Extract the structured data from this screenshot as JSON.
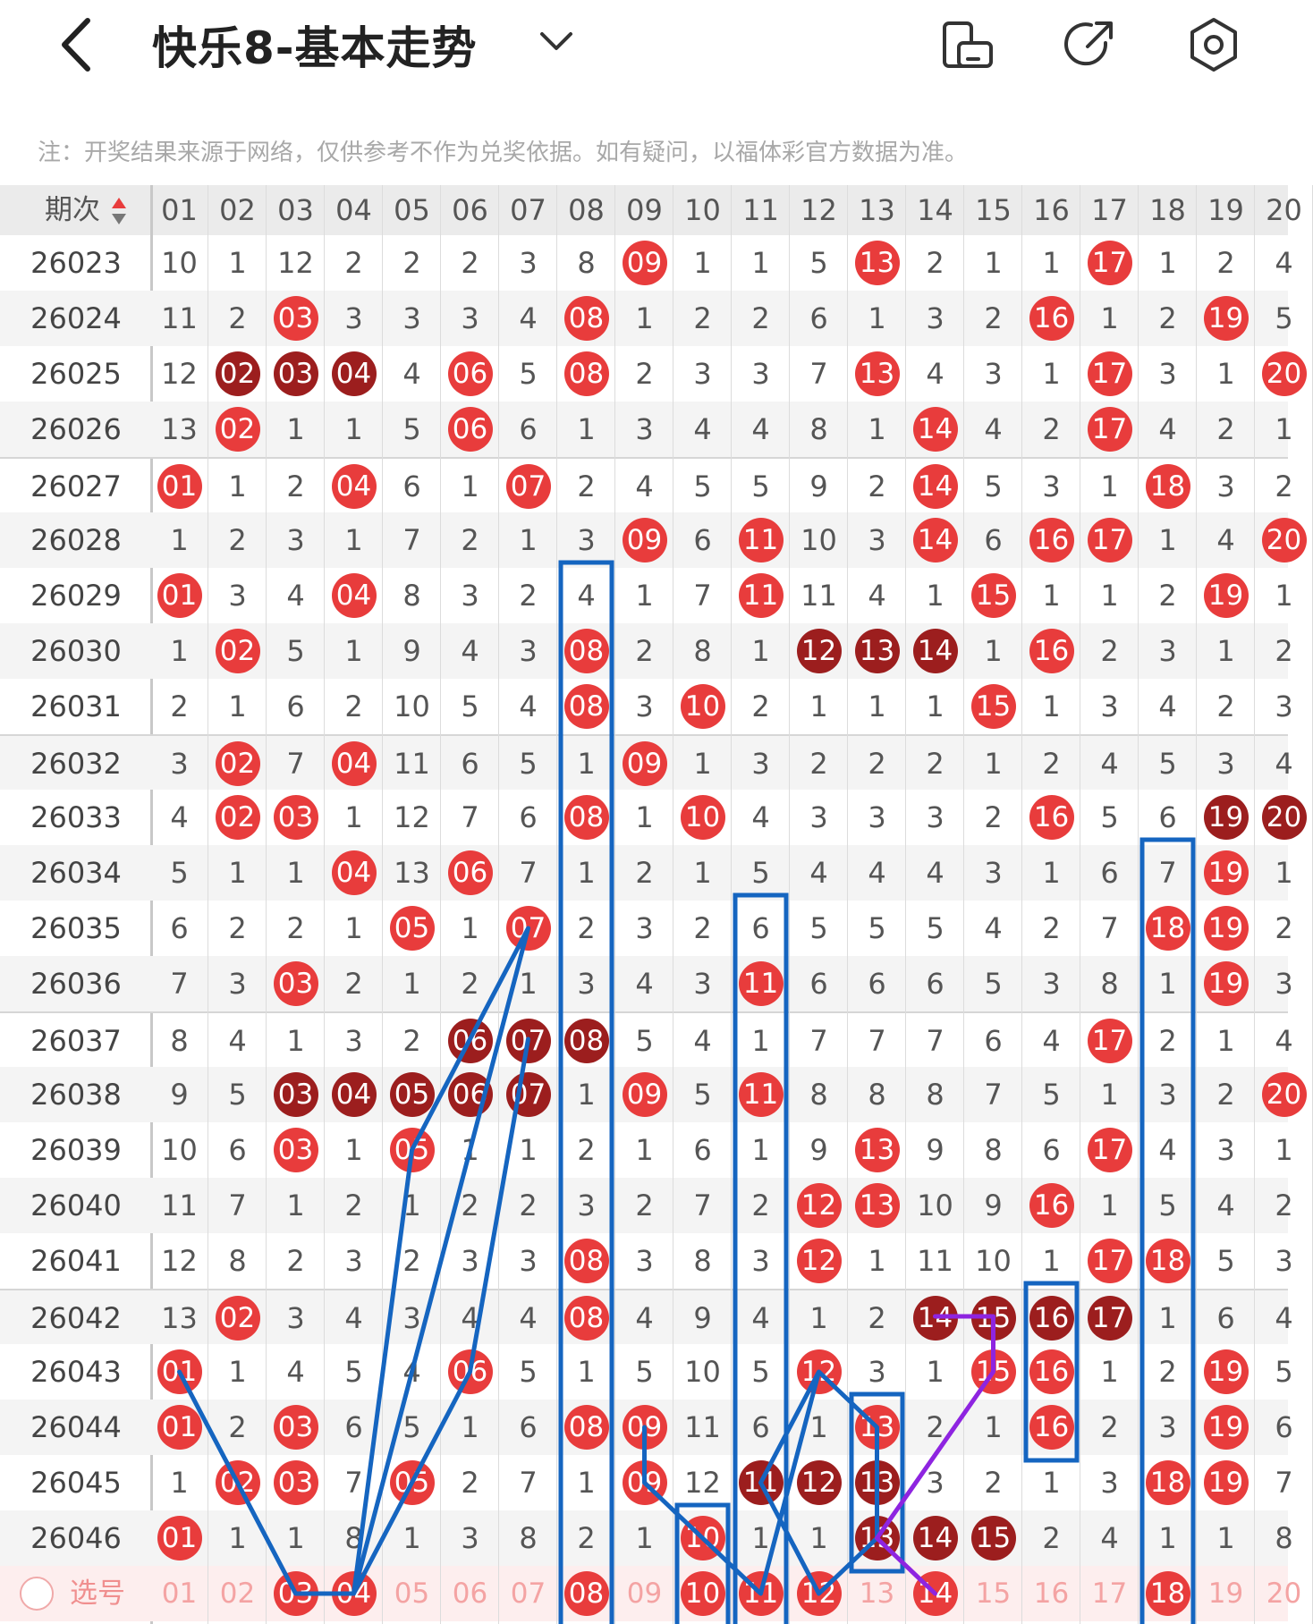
{
  "header": {
    "title": "快乐8-基本走势",
    "icons": [
      "back-arrow-icon",
      "chevron-down-icon",
      "phone-rotate-icon",
      "share-icon",
      "settings-gear-icon"
    ]
  },
  "note": "注：开奖结果来源于网络，仅供参考不作为兑奖依据。如有疑问，以福体彩官方数据为准。",
  "table": {
    "period_header": "期次",
    "columns": [
      "01",
      "02",
      "03",
      "04",
      "05",
      "06",
      "07",
      "08",
      "09",
      "10",
      "11",
      "12",
      "13",
      "14",
      "15",
      "16",
      "17",
      "18",
      "19",
      "20"
    ],
    "rows": [
      {
        "period": "26023",
        "cells": [
          "10",
          "1",
          "12",
          "2",
          "2",
          "2",
          "3",
          "8",
          "09",
          "1",
          "1",
          "5",
          "13",
          "2",
          "1",
          "1",
          "17",
          "1",
          "2",
          "4"
        ],
        "hits": [
          9,
          13,
          17
        ],
        "dark": []
      },
      {
        "period": "26024",
        "cells": [
          "11",
          "2",
          "03",
          "3",
          "3",
          "3",
          "4",
          "08",
          "1",
          "2",
          "2",
          "6",
          "1",
          "3",
          "2",
          "16",
          "1",
          "2",
          "19",
          "5"
        ],
        "hits": [
          3,
          8,
          16,
          19
        ],
        "dark": []
      },
      {
        "period": "26025",
        "cells": [
          "12",
          "02",
          "03",
          "04",
          "4",
          "06",
          "5",
          "08",
          "2",
          "3",
          "3",
          "7",
          "13",
          "4",
          "3",
          "1",
          "17",
          "3",
          "1",
          "20"
        ],
        "hits": [
          2,
          3,
          4,
          6,
          8,
          13,
          17,
          20
        ],
        "dark": [
          2,
          3,
          4
        ]
      },
      {
        "period": "26026",
        "cells": [
          "13",
          "02",
          "1",
          "1",
          "5",
          "06",
          "6",
          "1",
          "3",
          "4",
          "4",
          "8",
          "1",
          "14",
          "4",
          "2",
          "17",
          "4",
          "2",
          "1"
        ],
        "hits": [
          2,
          6,
          14,
          17
        ],
        "dark": []
      },
      {
        "period": "26027",
        "cells": [
          "01",
          "1",
          "2",
          "04",
          "6",
          "1",
          "07",
          "2",
          "4",
          "5",
          "5",
          "9",
          "2",
          "14",
          "5",
          "3",
          "1",
          "18",
          "3",
          "2"
        ],
        "hits": [
          1,
          4,
          7,
          14,
          18
        ],
        "dark": []
      },
      {
        "period": "26028",
        "cells": [
          "1",
          "2",
          "3",
          "1",
          "7",
          "2",
          "1",
          "3",
          "09",
          "6",
          "11",
          "10",
          "3",
          "14",
          "6",
          "16",
          "17",
          "1",
          "4",
          "20"
        ],
        "hits": [
          9,
          11,
          14,
          16,
          17,
          20
        ],
        "dark": []
      },
      {
        "period": "26029",
        "cells": [
          "01",
          "3",
          "4",
          "04",
          "8",
          "3",
          "2",
          "4",
          "1",
          "7",
          "11",
          "11",
          "4",
          "1",
          "15",
          "1",
          "1",
          "2",
          "19",
          "1"
        ],
        "hits": [
          1,
          4,
          11,
          15,
          19
        ],
        "dark": []
      },
      {
        "period": "26030",
        "cells": [
          "1",
          "02",
          "5",
          "1",
          "9",
          "4",
          "3",
          "08",
          "2",
          "8",
          "1",
          "12",
          "13",
          "14",
          "1",
          "16",
          "2",
          "3",
          "1",
          "2"
        ],
        "hits": [
          2,
          8,
          12,
          13,
          14,
          16
        ],
        "dark": [
          12,
          13,
          14
        ]
      },
      {
        "period": "26031",
        "cells": [
          "2",
          "1",
          "6",
          "2",
          "10",
          "5",
          "4",
          "08",
          "3",
          "10",
          "2",
          "1",
          "1",
          "1",
          "15",
          "1",
          "3",
          "4",
          "2",
          "3"
        ],
        "hits": [
          8,
          10,
          15
        ],
        "dark": []
      },
      {
        "period": "26032",
        "cells": [
          "3",
          "02",
          "7",
          "04",
          "11",
          "6",
          "5",
          "1",
          "09",
          "1",
          "3",
          "2",
          "2",
          "2",
          "1",
          "2",
          "4",
          "5",
          "3",
          "4"
        ],
        "hits": [
          2,
          4,
          9
        ],
        "dark": []
      },
      {
        "period": "26033",
        "cells": [
          "4",
          "02",
          "03",
          "1",
          "12",
          "7",
          "6",
          "08",
          "1",
          "10",
          "4",
          "3",
          "3",
          "3",
          "2",
          "16",
          "5",
          "6",
          "19",
          "20"
        ],
        "hits": [
          2,
          3,
          8,
          10,
          16,
          19,
          20
        ],
        "dark": [
          19,
          20
        ]
      },
      {
        "period": "26034",
        "cells": [
          "5",
          "1",
          "1",
          "04",
          "13",
          "06",
          "7",
          "1",
          "2",
          "1",
          "5",
          "4",
          "4",
          "4",
          "3",
          "1",
          "6",
          "7",
          "19",
          "1"
        ],
        "hits": [
          4,
          6,
          19
        ],
        "dark": []
      },
      {
        "period": "26035",
        "cells": [
          "6",
          "2",
          "2",
          "1",
          "05",
          "1",
          "07",
          "2",
          "3",
          "2",
          "6",
          "5",
          "5",
          "5",
          "4",
          "2",
          "7",
          "18",
          "19",
          "2"
        ],
        "hits": [
          5,
          7,
          18,
          19
        ],
        "dark": []
      },
      {
        "period": "26036",
        "cells": [
          "7",
          "3",
          "03",
          "2",
          "1",
          "2",
          "1",
          "3",
          "4",
          "3",
          "11",
          "6",
          "6",
          "6",
          "5",
          "3",
          "8",
          "1",
          "19",
          "3"
        ],
        "hits": [
          3,
          11,
          19
        ],
        "dark": []
      },
      {
        "period": "26037",
        "cells": [
          "8",
          "4",
          "1",
          "3",
          "2",
          "06",
          "07",
          "08",
          "5",
          "4",
          "1",
          "7",
          "7",
          "7",
          "6",
          "4",
          "17",
          "2",
          "1",
          "4"
        ],
        "hits": [
          6,
          7,
          8,
          17
        ],
        "dark": [
          6,
          7,
          8
        ]
      },
      {
        "period": "26038",
        "cells": [
          "9",
          "5",
          "03",
          "04",
          "05",
          "06",
          "07",
          "1",
          "09",
          "5",
          "11",
          "8",
          "8",
          "8",
          "7",
          "5",
          "1",
          "3",
          "2",
          "20"
        ],
        "hits": [
          3,
          4,
          5,
          6,
          7,
          9,
          11,
          20
        ],
        "dark": [
          3,
          4,
          5,
          6,
          7
        ]
      },
      {
        "period": "26039",
        "cells": [
          "10",
          "6",
          "03",
          "1",
          "05",
          "1",
          "1",
          "2",
          "1",
          "6",
          "1",
          "9",
          "13",
          "9",
          "8",
          "6",
          "17",
          "4",
          "3",
          "1"
        ],
        "hits": [
          3,
          5,
          13,
          17
        ],
        "dark": []
      },
      {
        "period": "26040",
        "cells": [
          "11",
          "7",
          "1",
          "2",
          "1",
          "2",
          "2",
          "3",
          "2",
          "7",
          "2",
          "12",
          "13",
          "10",
          "9",
          "16",
          "1",
          "5",
          "4",
          "2"
        ],
        "hits": [
          12,
          13,
          16
        ],
        "dark": []
      },
      {
        "period": "26041",
        "cells": [
          "12",
          "8",
          "2",
          "3",
          "2",
          "3",
          "3",
          "08",
          "3",
          "8",
          "3",
          "12",
          "1",
          "11",
          "10",
          "1",
          "17",
          "18",
          "5",
          "3"
        ],
        "hits": [
          8,
          12,
          17,
          18
        ],
        "dark": []
      },
      {
        "period": "26042",
        "cells": [
          "13",
          "02",
          "3",
          "4",
          "3",
          "4",
          "4",
          "08",
          "4",
          "9",
          "4",
          "1",
          "2",
          "14",
          "15",
          "16",
          "17",
          "1",
          "6",
          "4"
        ],
        "hits": [
          2,
          8,
          14,
          15,
          16,
          17
        ],
        "dark": [
          14,
          15,
          16,
          17
        ]
      },
      {
        "period": "26043",
        "cells": [
          "01",
          "1",
          "4",
          "5",
          "4",
          "06",
          "5",
          "1",
          "5",
          "10",
          "5",
          "12",
          "3",
          "1",
          "15",
          "16",
          "1",
          "2",
          "19",
          "5"
        ],
        "hits": [
          1,
          6,
          12,
          15,
          16,
          19
        ],
        "dark": []
      },
      {
        "period": "26044",
        "cells": [
          "01",
          "2",
          "03",
          "6",
          "5",
          "1",
          "6",
          "08",
          "09",
          "11",
          "6",
          "1",
          "13",
          "2",
          "1",
          "16",
          "2",
          "3",
          "19",
          "6"
        ],
        "hits": [
          1,
          3,
          8,
          9,
          13,
          16,
          19
        ],
        "dark": []
      },
      {
        "period": "26045",
        "cells": [
          "1",
          "02",
          "03",
          "7",
          "05",
          "2",
          "7",
          "1",
          "09",
          "12",
          "11",
          "12",
          "13",
          "3",
          "2",
          "1",
          "3",
          "18",
          "19",
          "7"
        ],
        "hits": [
          2,
          3,
          5,
          9,
          11,
          12,
          13,
          18,
          19
        ],
        "dark": [
          11,
          12,
          13
        ]
      },
      {
        "period": "26046",
        "cells": [
          "01",
          "1",
          "1",
          "8",
          "1",
          "3",
          "8",
          "2",
          "1",
          "10",
          "1",
          "1",
          "13",
          "14",
          "15",
          "2",
          "4",
          "1",
          "1",
          "8"
        ],
        "hits": [
          1,
          10,
          13,
          14,
          15
        ],
        "dark": [
          13,
          14,
          15
        ]
      }
    ],
    "select_row": {
      "label": "选号",
      "selected": [
        3,
        4,
        8,
        10,
        11,
        12,
        14,
        18
      ]
    }
  },
  "colors": {
    "ball_red": "#e83c3c",
    "ball_dark": "#9c1e1e",
    "line_blue": "#1565c0",
    "line_purple": "#8e24e0"
  }
}
